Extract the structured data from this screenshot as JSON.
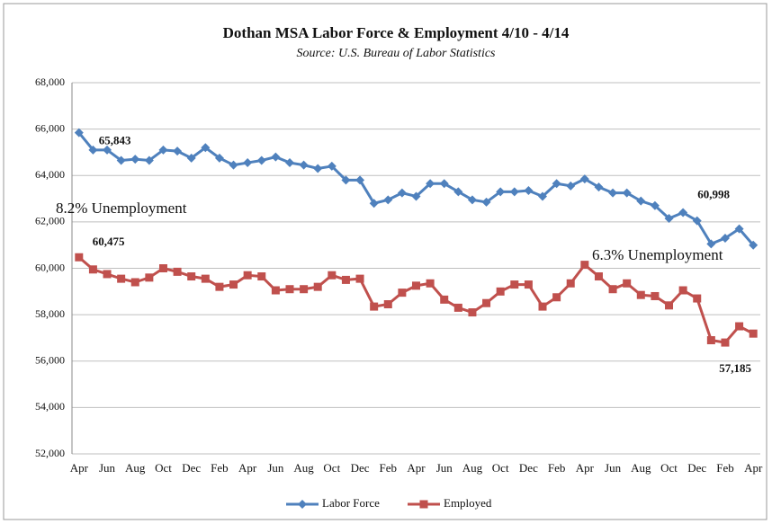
{
  "chart_data": {
    "type": "line",
    "title": "Dothan MSA Labor Force & Employment  4/10 - 4/14",
    "subtitle": "Source: U.S. Bureau of Labor Statistics",
    "categories": [
      "Apr",
      null,
      "Jun",
      null,
      "Aug",
      null,
      "Oct",
      null,
      "Dec",
      null,
      "Feb",
      null,
      "Apr",
      null,
      "Jun",
      null,
      "Aug",
      null,
      "Oct",
      null,
      "Dec",
      null,
      "Feb",
      null,
      "Apr",
      null,
      "Jun",
      null,
      "Aug",
      null,
      "Oct",
      null,
      "Dec",
      null,
      "Feb",
      null,
      "Apr",
      null,
      "Jun",
      null,
      "Aug",
      null,
      "Oct",
      null,
      "Dec",
      null,
      "Feb",
      null,
      "Apr"
    ],
    "series": [
      {
        "name": "Labor Force",
        "color": "#4f81bd",
        "marker": "diamond",
        "values": [
          65843,
          65100,
          65100,
          64650,
          64700,
          64650,
          65100,
          65050,
          64750,
          65200,
          64750,
          64450,
          64550,
          64650,
          64800,
          64550,
          64450,
          64300,
          64400,
          63800,
          63800,
          62800,
          62950,
          63250,
          63100,
          63650,
          63650,
          63300,
          62950,
          62850,
          63300,
          63300,
          63350,
          63100,
          63650,
          63550,
          63850,
          63500,
          63250,
          63250,
          62900,
          62700,
          62150,
          62400,
          62050,
          61050,
          61300,
          61700,
          60998
        ],
        "value_labels": [
          "65,843",
          null,
          null,
          null,
          null,
          null,
          null,
          null,
          null,
          null,
          null,
          null,
          null,
          null,
          null,
          null,
          null,
          null,
          null,
          null,
          null,
          null,
          null,
          null,
          null,
          null,
          null,
          null,
          null,
          null,
          null,
          null,
          null,
          null,
          null,
          null,
          null,
          null,
          null,
          null,
          null,
          null,
          null,
          null,
          null,
          null,
          null,
          null,
          "60,998"
        ]
      },
      {
        "name": "Employed",
        "color": "#c0504d",
        "marker": "square",
        "values": [
          60475,
          59950,
          59750,
          59550,
          59400,
          59600,
          60000,
          59850,
          59650,
          59550,
          59200,
          59300,
          59700,
          59650,
          59050,
          59100,
          59100,
          59200,
          59700,
          59500,
          59550,
          58350,
          58450,
          58950,
          59250,
          59350,
          58650,
          58300,
          58100,
          58500,
          59000,
          59300,
          59300,
          58350,
          58750,
          59350,
          60150,
          59650,
          59100,
          59350,
          58850,
          58800,
          58400,
          59050,
          58700,
          56900,
          56800,
          57500,
          57185
        ],
        "value_labels": [
          "60,475",
          null,
          null,
          null,
          null,
          null,
          null,
          null,
          null,
          null,
          null,
          null,
          null,
          null,
          null,
          null,
          null,
          null,
          null,
          null,
          null,
          null,
          null,
          null,
          null,
          null,
          null,
          null,
          null,
          null,
          null,
          null,
          null,
          null,
          null,
          null,
          null,
          null,
          null,
          null,
          null,
          null,
          null,
          null,
          null,
          null,
          null,
          null,
          "57,185"
        ]
      }
    ],
    "annotations": [
      "8.2% Unemployment",
      "6.3% Unemployment"
    ],
    "ylim": [
      52000,
      68000
    ],
    "yticks": [
      {
        "value": 52000,
        "label": "52,000"
      },
      {
        "value": 54000,
        "label": "54,000"
      },
      {
        "value": 56000,
        "label": "56,000"
      },
      {
        "value": 58000,
        "label": "58,000"
      },
      {
        "value": 60000,
        "label": "60,000"
      },
      {
        "value": 62000,
        "label": "62,000"
      },
      {
        "value": 64000,
        "label": "64,000"
      },
      {
        "value": 66000,
        "label": "66,000"
      },
      {
        "value": 68000,
        "label": "68,000"
      }
    ],
    "grid": true,
    "legend": "bottom"
  }
}
